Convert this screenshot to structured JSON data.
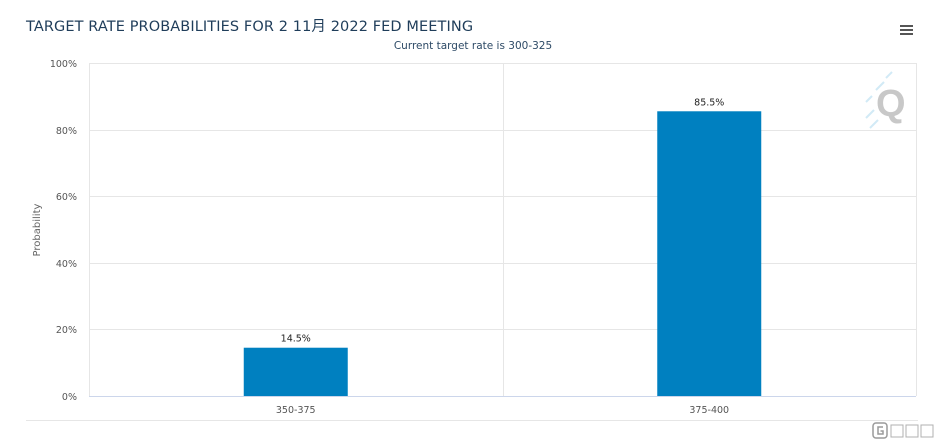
{
  "chart_data": {
    "type": "bar",
    "title": "TARGET RATE PROBABILITIES FOR 2 11月 2022 FED MEETING",
    "subtitle": "Current target rate is 300-325",
    "xlabel": "",
    "ylabel": "Probability",
    "categories": [
      "350-375",
      "375-400"
    ],
    "values": [
      14.5,
      85.5
    ],
    "data_labels": [
      "14.5%",
      "85.5%"
    ],
    "ylim": [
      0,
      100
    ],
    "yticks": [
      0,
      20,
      40,
      60,
      80,
      100
    ],
    "ytick_labels": [
      "0%",
      "20%",
      "40%",
      "60%",
      "80%",
      "100%"
    ],
    "grid": true,
    "bar_color": "#0080c0"
  },
  "toolbar": {
    "menu_icon": "hamburger-menu-icon"
  },
  "watermark": {
    "icon": "q-logo-watermark"
  },
  "corner_logo": {
    "icon": "gelonghui-logo"
  }
}
